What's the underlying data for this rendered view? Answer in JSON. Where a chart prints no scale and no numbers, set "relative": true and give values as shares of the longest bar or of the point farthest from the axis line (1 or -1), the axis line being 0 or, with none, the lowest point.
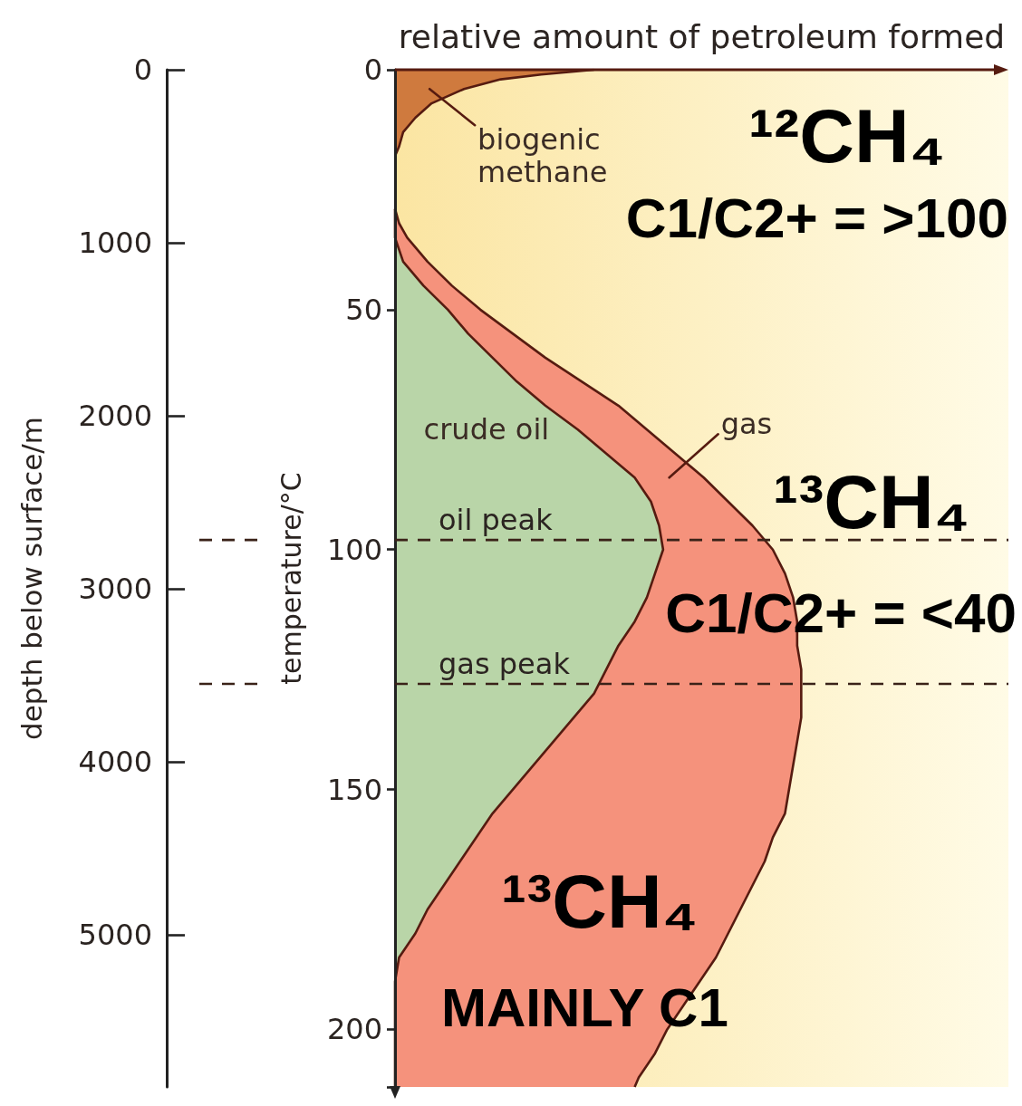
{
  "chart_data": {
    "type": "area",
    "orientation": "horizontal",
    "stacked": true,
    "relative": true,
    "xlabel": "relative amount of petroleum formed",
    "ylabel": "temperature/°C",
    "y2label": "depth below surface/m",
    "ylim": [
      212,
      0
    ],
    "yticks": [
      0,
      50,
      100,
      150,
      200
    ],
    "y2lim": [
      5880,
      0
    ],
    "y2ticks": [
      0,
      1000,
      2000,
      3000,
      4000,
      5000
    ],
    "x": [
      0,
      1,
      2,
      4,
      7,
      10,
      13,
      16,
      18,
      29,
      32,
      35,
      40,
      45,
      50,
      55,
      60,
      65,
      70,
      75,
      80,
      85,
      90,
      95,
      100,
      105,
      110,
      115,
      120,
      125,
      130,
      135,
      140,
      145,
      150,
      155,
      160,
      165,
      170,
      175,
      180,
      185,
      190,
      195,
      200,
      205,
      210,
      212
    ],
    "series": [
      {
        "name": "biogenic methane",
        "color": "#cf7a3e",
        "values": [
          0.49,
          0.36,
          0.26,
          0.17,
          0.09,
          0.05,
          0.02,
          0.01,
          0,
          null,
          null,
          null,
          null,
          null,
          null,
          null,
          null,
          null,
          null,
          null,
          null,
          null,
          null,
          null,
          null,
          null,
          null,
          null,
          null,
          null,
          null,
          null,
          null,
          null,
          null,
          null,
          null,
          null,
          null,
          null,
          null,
          null,
          null,
          null,
          null,
          null,
          null,
          null
        ]
      },
      {
        "name": "crude oil",
        "color": "#b9d5a8",
        "values": [
          null,
          null,
          null,
          null,
          null,
          null,
          null,
          null,
          null,
          0,
          0,
          0,
          0.02,
          0.07,
          0.13,
          0.18,
          0.24,
          0.3,
          0.37,
          0.45,
          0.52,
          0.59,
          0.63,
          0.65,
          0.66,
          0.64,
          0.62,
          0.59,
          0.55,
          0.52,
          0.49,
          0.44,
          0.39,
          0.34,
          0.29,
          0.24,
          0.2,
          0.16,
          0.12,
          0.08,
          0.05,
          0.01,
          0,
          0,
          0,
          0,
          0,
          0
        ]
      },
      {
        "name": "gas",
        "color": "#f5927c",
        "values": [
          null,
          null,
          null,
          null,
          null,
          null,
          null,
          null,
          null,
          0,
          0.01,
          0.03,
          0.06,
          0.07,
          0.08,
          0.11,
          0.13,
          0.16,
          0.18,
          0.17,
          0.17,
          0.17,
          0.19,
          0.23,
          0.27,
          0.32,
          0.36,
          0.4,
          0.44,
          0.48,
          0.51,
          0.56,
          0.6,
          0.64,
          0.68,
          0.72,
          0.73,
          0.75,
          0.76,
          0.77,
          0.77,
          0.78,
          0.75,
          0.71,
          0.67,
          0.64,
          0.6,
          0.59
        ]
      }
    ],
    "ref_lines": [
      {
        "axis": "y",
        "value": 98,
        "label": "oil peak",
        "line_style": "dashed",
        "color": "#3a2218"
      },
      {
        "axis": "y",
        "value": 128,
        "label": "gas peak",
        "line_style": "dashed",
        "color": "#3a2218"
      }
    ],
    "annotations": [
      "¹²CH₄",
      "C1/C2+ = >100",
      "¹³CH₄",
      "C1/C2+ = <40",
      "¹³CH₄",
      "MAINLY C1"
    ]
  }
}
